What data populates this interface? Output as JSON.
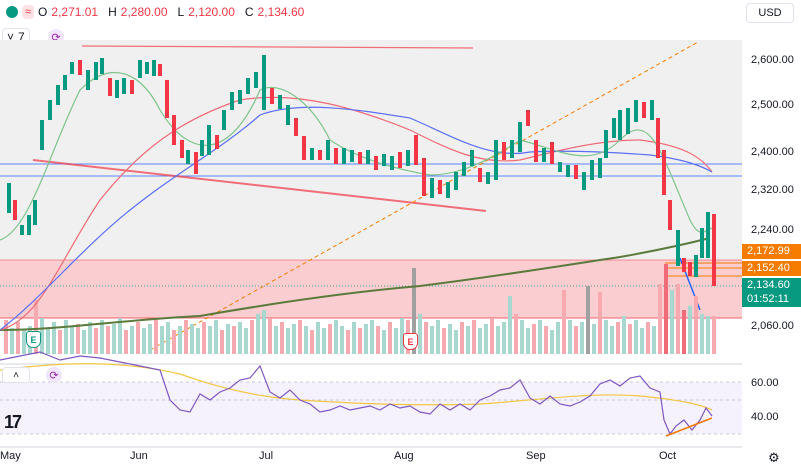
{
  "legend": {
    "o_label": "O",
    "o_value": "2,271.01",
    "h_label": "H",
    "h_value": "2,280.00",
    "l_label": "L",
    "l_value": "2,120.00",
    "c_label": "C",
    "c_value": "2,134.60",
    "indicator_count": "7",
    "collapse_glyph": "˄"
  },
  "currency": "USD",
  "price_axis": {
    "ticks": [
      "2,600.00",
      "2,500.00",
      "2,400.00",
      "2,320.00",
      "2,240.00",
      "2,060.00"
    ],
    "tag_upper": "2,172.99",
    "tag_middle": "2,152.40",
    "tag_last": "2,134.60",
    "tag_countdown": "01:52:11",
    "colors": {
      "orange": "#f57c00",
      "green": "#089981",
      "red": "#f23645"
    }
  },
  "rsi_axis": {
    "ticks": [
      "60.00",
      "40.00"
    ]
  },
  "time_axis": [
    "May",
    "Jun",
    "Jul",
    "Aug",
    "Sep",
    "Oct"
  ],
  "earnings": {
    "badge_1": "E",
    "badge_2": "E"
  },
  "icons": {
    "settings": "gear-icon",
    "sync": "sync-icon",
    "logo": "tradingview-logo"
  },
  "logo_text": "17"
}
